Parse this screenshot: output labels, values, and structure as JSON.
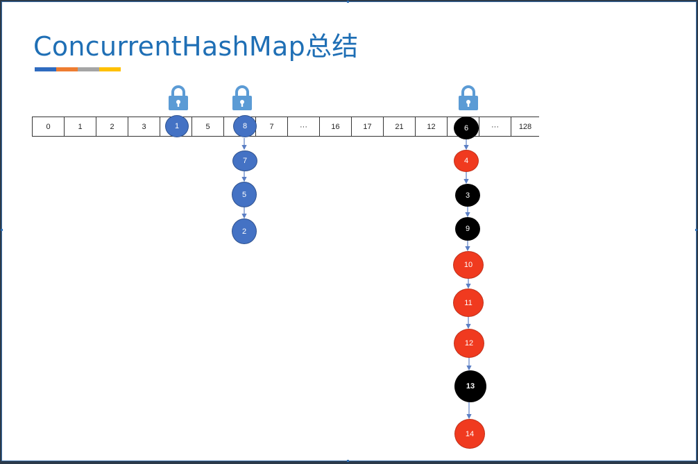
{
  "title": "ConcurrentHashMap总结",
  "accent_colors": [
    "#2f6bbf",
    "#ee7d31",
    "#a5a5a5",
    "#ffc000"
  ],
  "array_cells": [
    "0",
    "1",
    "2",
    "3",
    "",
    "5",
    "",
    "7",
    "···",
    "16",
    "17",
    "21",
    "12",
    "",
    "···",
    "128"
  ],
  "locks": [
    {
      "icon": "padlock-icon",
      "bucket_index": 4
    },
    {
      "icon": "padlock-icon",
      "bucket_index": 6
    },
    {
      "icon": "padlock-icon",
      "bucket_index": 13
    }
  ],
  "bucket_1": {
    "nodes": [
      "1"
    ]
  },
  "bucket_8_chain": {
    "nodes": [
      "8",
      "7",
      "5",
      "2"
    ]
  },
  "bucket_6_tree": {
    "nodes": [
      {
        "label": "6",
        "color": "black"
      },
      {
        "label": "4",
        "color": "red"
      },
      {
        "label": "3",
        "color": "black"
      },
      {
        "label": "9",
        "color": "black"
      },
      {
        "label": "10",
        "color": "red"
      },
      {
        "label": "11",
        "color": "red"
      },
      {
        "label": "12",
        "color": "red"
      },
      {
        "label": "13",
        "color": "black"
      },
      {
        "label": "14",
        "color": "red"
      }
    ]
  },
  "colors": {
    "title": "#1f6fb5",
    "blue_node": "#4472c4",
    "red_node": "#f03a1f",
    "black_node": "#000000",
    "link": "#5b7fc4"
  }
}
